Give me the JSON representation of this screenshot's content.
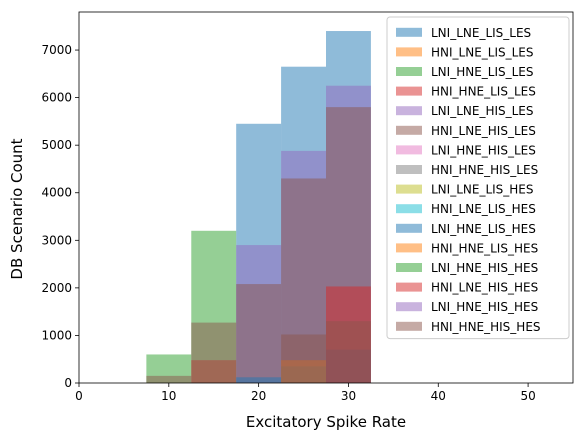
{
  "chart_data": {
    "type": "bar",
    "subtype": "overlaid-histogram",
    "xlabel": "Excitatory Spike Rate",
    "ylabel": "DB Scenario Count",
    "xlim": [
      0,
      55
    ],
    "ylim": [
      0,
      7800
    ],
    "xticks": [
      "0",
      "10",
      "20",
      "30",
      "40",
      "50"
    ],
    "yticks": [
      "0",
      "1000",
      "2000",
      "3000",
      "4000",
      "5000",
      "6000",
      "7000"
    ],
    "grid": false,
    "legend_position": "upper right",
    "bin_edges": [
      7.5,
      12.5,
      17.5,
      22.5,
      27.5,
      32.5
    ],
    "series": [
      {
        "name": "LNI_LNE_LIS_LES",
        "color": "#1f77b4",
        "values": [
          0,
          0,
          5450,
          6650,
          7400
        ]
      },
      {
        "name": "HNI_LNE_LIS_LES",
        "color": "#ff7f0e",
        "values": [
          0,
          0,
          0,
          0,
          0
        ]
      },
      {
        "name": "LNI_HNE_LIS_LES",
        "color": "#2ca02c",
        "values": [
          600,
          3200,
          0,
          0,
          0
        ]
      },
      {
        "name": "HNI_HNE_LIS_LES",
        "color": "#d62728",
        "values": [
          0,
          480,
          0,
          0,
          0
        ]
      },
      {
        "name": "LNI_LNE_HIS_LES",
        "color": "#9467bd",
        "values": [
          0,
          0,
          2900,
          4880,
          6250
        ]
      },
      {
        "name": "HNI_LNE_HIS_LES",
        "color": "#8c564b",
        "values": [
          150,
          1270,
          2080,
          4300,
          5800
        ]
      },
      {
        "name": "LNI_HNE_HIS_LES",
        "color": "#e377c2",
        "values": [
          0,
          0,
          0,
          0,
          0
        ]
      },
      {
        "name": "HNI_HNE_HIS_LES",
        "color": "#7f7f7f",
        "values": [
          0,
          0,
          0,
          0,
          0
        ]
      },
      {
        "name": "LNI_LNE_LIS_HES",
        "color": "#bcbd22",
        "values": [
          0,
          0,
          0,
          0,
          0
        ]
      },
      {
        "name": "HNI_LNE_LIS_HES",
        "color": "#17becf",
        "values": [
          0,
          0,
          0,
          0,
          0
        ]
      },
      {
        "name": "LNI_HNE_LIS_HES",
        "color": "#1f77b4",
        "values": [
          0,
          0,
          120,
          350,
          700
        ]
      },
      {
        "name": "HNI_HNE_LIS_HES",
        "color": "#ff7f0e",
        "values": [
          0,
          0,
          0,
          480,
          0
        ]
      },
      {
        "name": "LNI_HNE_HIS_HES",
        "color": "#2ca02c",
        "values": [
          0,
          0,
          0,
          0,
          0
        ]
      },
      {
        "name": "HNI_LNE_HIS_HES",
        "color": "#d62728",
        "values": [
          0,
          0,
          0,
          0,
          2030
        ]
      },
      {
        "name": "LNI_HNE_HIS_HES",
        "color": "#9467bd",
        "values": [
          0,
          0,
          0,
          0,
          0
        ]
      },
      {
        "name": "HNI_HNE_HIS_HES",
        "color": "#8c564b",
        "values": [
          0,
          0,
          0,
          1020,
          1300
        ]
      }
    ]
  }
}
